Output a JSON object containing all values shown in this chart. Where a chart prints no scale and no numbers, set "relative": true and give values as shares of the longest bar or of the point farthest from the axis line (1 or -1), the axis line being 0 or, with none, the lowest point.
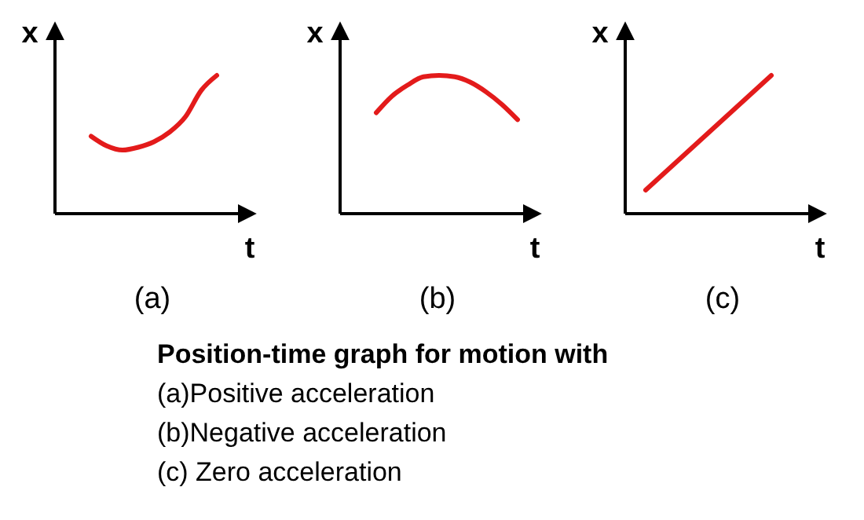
{
  "chart_data": [
    {
      "type": "line",
      "xlabel": "t",
      "ylabel": "x",
      "relative": true,
      "categories": [
        null,
        null,
        null,
        null,
        null,
        null,
        null,
        null,
        null,
        null,
        null,
        null,
        null
      ],
      "series": [
        {
          "color": "#e31b1b",
          "values": [
            null,
            null,
            0.56,
            0.49,
            0.46,
            0.48,
            0.52,
            0.59,
            0.7,
            0.89,
            1,
            null,
            null
          ]
        }
      ],
      "annotations": [
        "(a)"
      ]
    },
    {
      "type": "line",
      "xlabel": "t",
      "ylabel": "x",
      "relative": true,
      "categories": [
        null,
        null,
        null,
        null,
        null,
        null,
        null,
        null,
        null,
        null,
        null,
        null,
        null
      ],
      "series": [
        {
          "color": "#e31b1b",
          "values": [
            null,
            null,
            0.73,
            0.85,
            0.93,
            0.99,
            1,
            0.99,
            0.95,
            0.88,
            0.79,
            0.68,
            null
          ]
        }
      ],
      "annotations": [
        "(b)"
      ]
    },
    {
      "type": "line",
      "xlabel": "t",
      "ylabel": "x",
      "relative": true,
      "categories": [
        null,
        null,
        null,
        null,
        null,
        null,
        null,
        null,
        null,
        null,
        null,
        null,
        null
      ],
      "series": [
        {
          "color": "#e31b1b",
          "values": [
            null,
            0.17,
            null,
            null,
            null,
            null,
            null,
            null,
            null,
            1,
            null,
            null,
            null
          ]
        }
      ],
      "annotations": [
        "(c)"
      ]
    },
    {
      "type": "other",
      "title": "Position-time graph for motion with",
      "annotations": [
        "(a)Positive acceleration",
        "(b)Negative acceleration",
        "(c) Zero acceleration"
      ]
    }
  ]
}
